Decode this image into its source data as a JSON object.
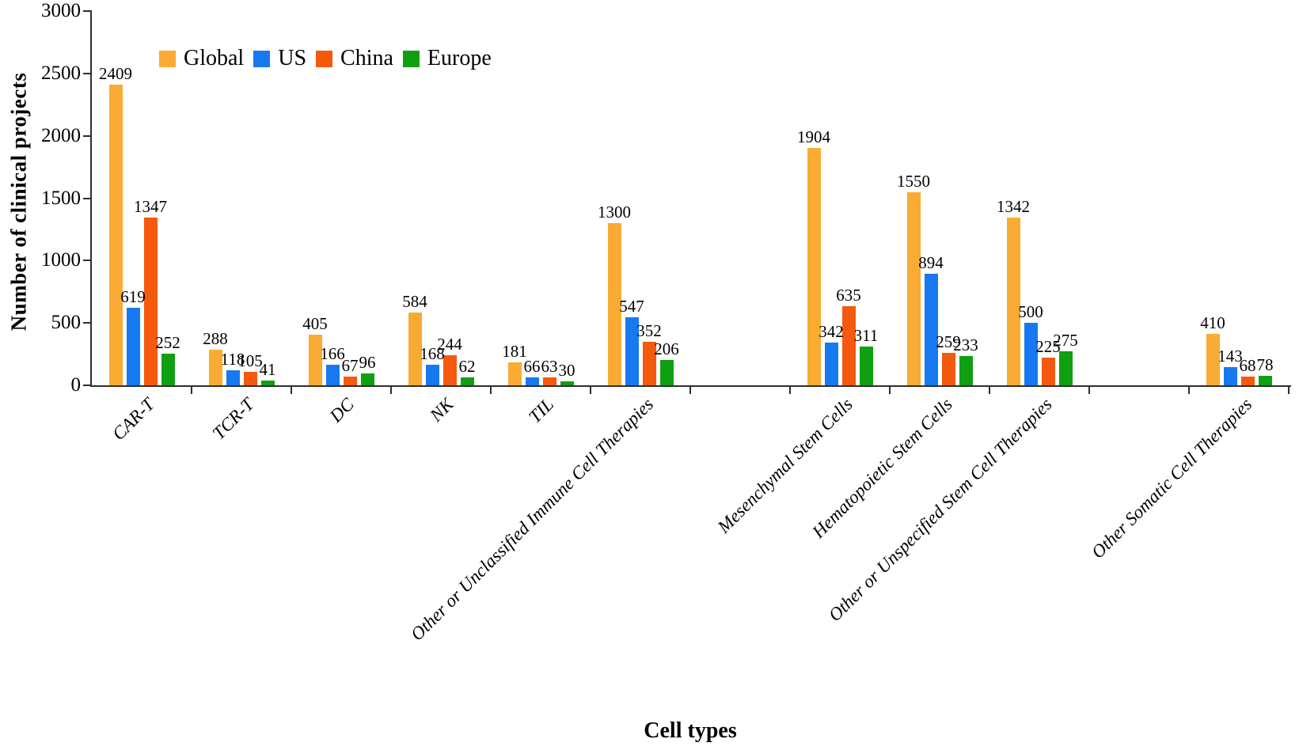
{
  "figure": {
    "background": "#ffffff",
    "text_color": "#000000",
    "axis_color": "#2e2e2e"
  },
  "chart_data": {
    "type": "bar",
    "title": "",
    "xlabel": "Cell types",
    "ylabel": "Number of clinical projects",
    "ylim": [
      0,
      3000
    ],
    "yticks": [
      0,
      500,
      1000,
      1500,
      2000,
      2500,
      3000
    ],
    "grid": false,
    "legend_position": "top-left-inside",
    "value_labels": true,
    "categories": [
      "CAR-T",
      "TCR-T",
      "DC",
      "NK",
      "TIL",
      "Other or Unclassified Immune Cell Therapies",
      "Mesenchymal Stem Cells",
      "Hematopoietic Stem Cells",
      "Other or Unspecified Stem Cell Therapies",
      "Other Somatic Cell Therapies"
    ],
    "spacer_slots_after_category_index": [
      5,
      8
    ],
    "series": [
      {
        "name": "Global",
        "color": "#FAAB33",
        "values": [
          2409,
          288,
          405,
          584,
          181,
          1300,
          1904,
          1550,
          1342,
          410
        ]
      },
      {
        "name": "US",
        "color": "#1779F0",
        "values": [
          619,
          118,
          166,
          168,
          66,
          547,
          342,
          894,
          500,
          143
        ]
      },
      {
        "name": "China",
        "color": "#F4590E",
        "values": [
          1347,
          105,
          67,
          244,
          63,
          352,
          635,
          259,
          225,
          68
        ]
      },
      {
        "name": "Europe",
        "color": "#0FA012",
        "values": [
          252,
          41,
          96,
          62,
          30,
          206,
          311,
          233,
          275,
          78
        ]
      }
    ]
  }
}
